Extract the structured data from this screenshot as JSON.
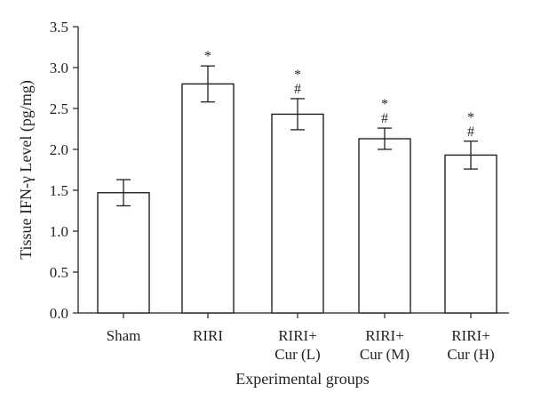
{
  "chart_data": {
    "type": "bar",
    "title": "",
    "xlabel": "Experimental groups",
    "ylabel": "Tissue IFN-γ Level (pg/mg)",
    "ylim": [
      0,
      3.5
    ],
    "yticks": [
      "0.0",
      "0.5",
      "1.0",
      "1.5",
      "2.0",
      "2.5",
      "3.0",
      "3.5"
    ],
    "categories": [
      [
        "Sham"
      ],
      [
        "RIRI"
      ],
      [
        "RIRI+",
        "Cur (L)"
      ],
      [
        "RIRI+",
        "Cur (M)"
      ],
      [
        "RIRI+",
        "Cur (H)"
      ]
    ],
    "values": [
      1.47,
      2.8,
      2.43,
      2.13,
      1.93
    ],
    "errors": [
      0.16,
      0.22,
      0.19,
      0.13,
      0.17
    ],
    "annotations": [
      [],
      [
        "*"
      ],
      [
        "*",
        "#"
      ],
      [
        "*",
        "#"
      ],
      [
        "*",
        "#"
      ]
    ],
    "grid": false,
    "legend": "none",
    "colors": {
      "bar_fill": "#ffffff",
      "stroke": "#231f20"
    }
  }
}
